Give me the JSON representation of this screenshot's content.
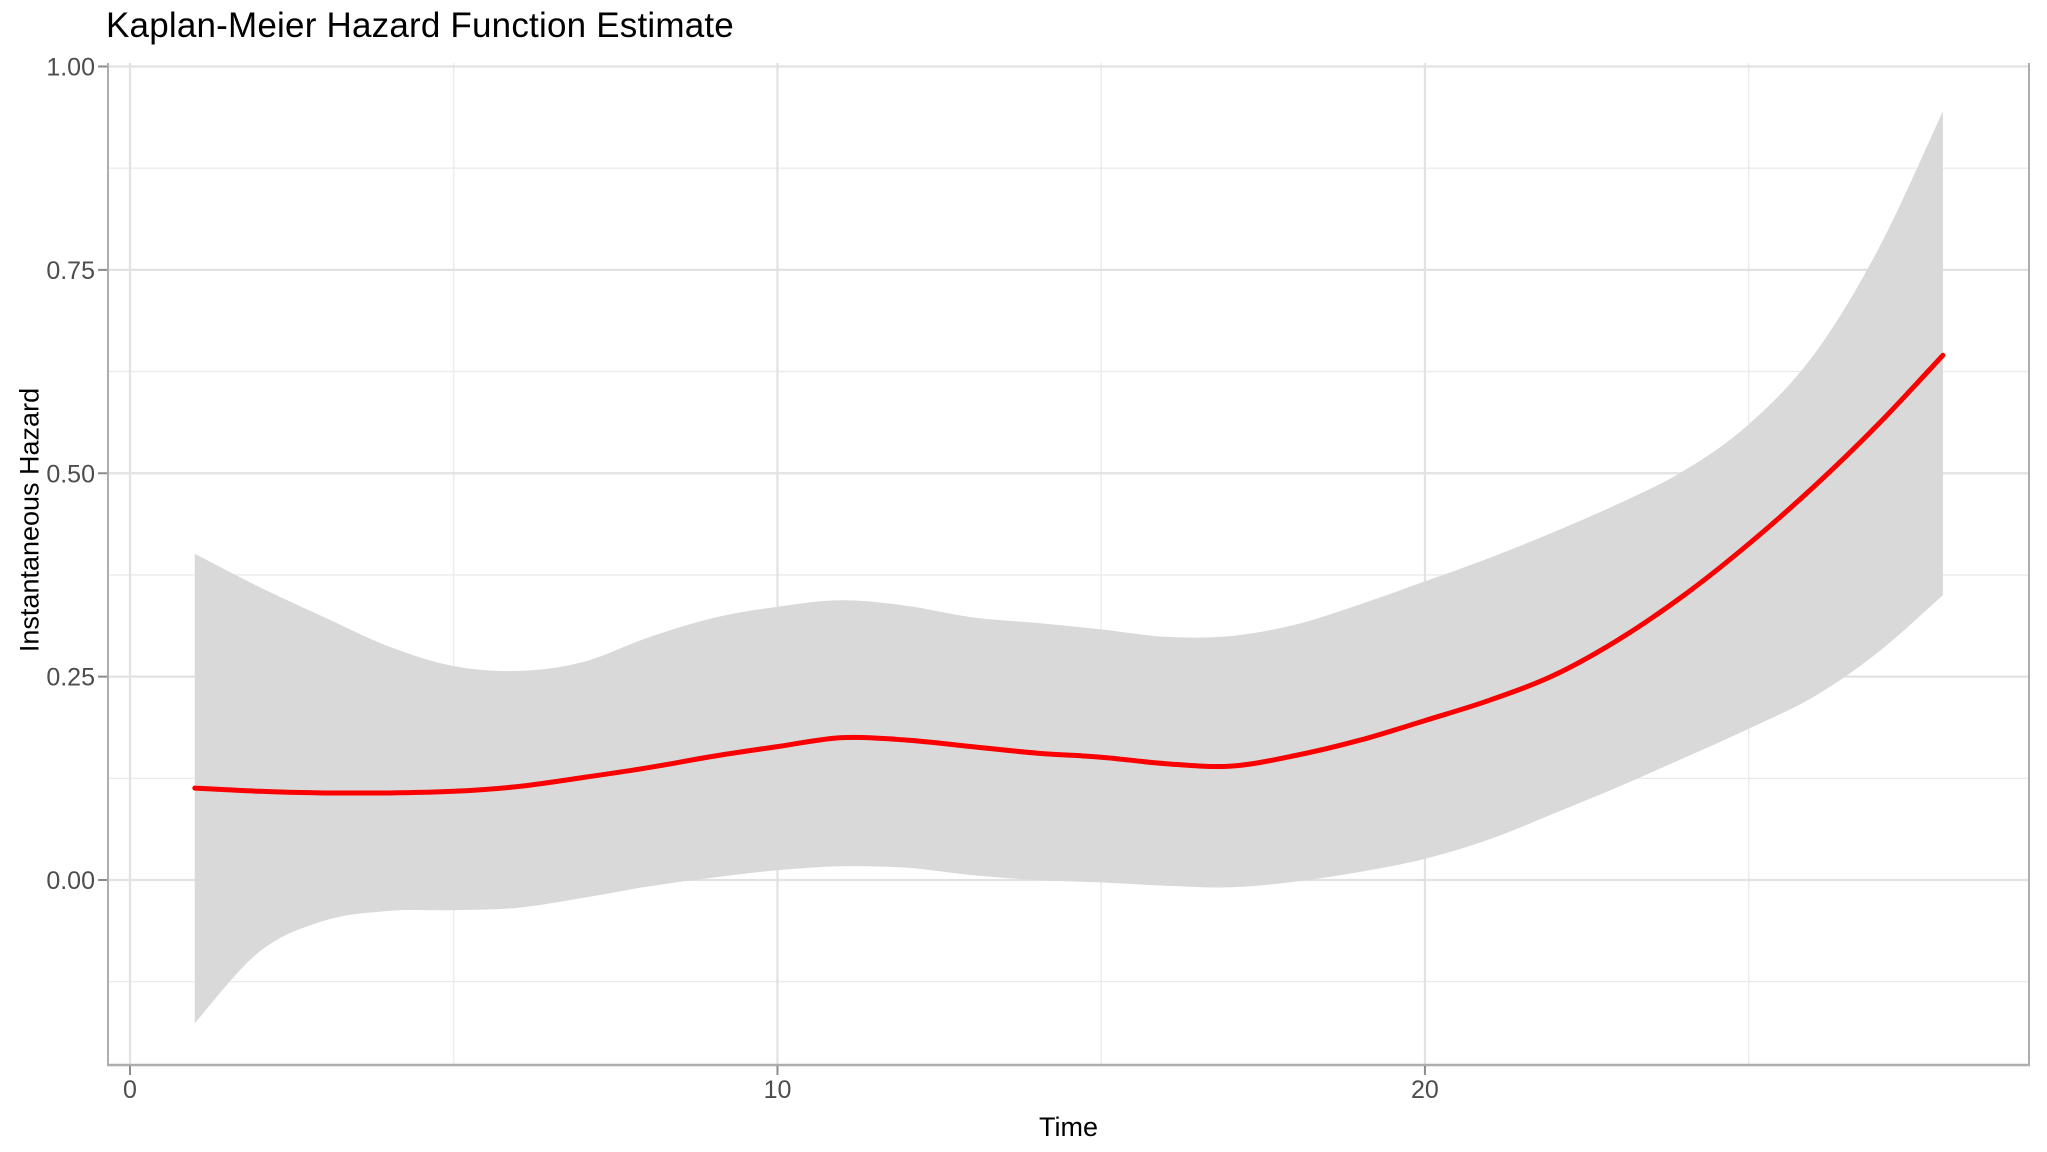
{
  "chart_data": {
    "type": "line",
    "title": "Kaplan-Meier Hazard Function Estimate",
    "xlabel": "Time",
    "ylabel": "Instantaneous Hazard",
    "legend": "none",
    "grid": true,
    "xlim": [
      -0.34,
      29.33
    ],
    "ylim": [
      -0.2274,
      1.0043
    ],
    "x_ticks": [
      0,
      10,
      20
    ],
    "x_tick_labels": [
      "0",
      "10",
      "20"
    ],
    "x_minor_gridlines": [
      5,
      15,
      25
    ],
    "y_ticks": [
      0,
      0.25,
      0.5,
      0.75,
      1.0
    ],
    "y_tick_labels": [
      "0.00",
      "0.25",
      "0.50",
      "0.75",
      "1.00"
    ],
    "y_minor_gridlines": [
      -0.125,
      0.125,
      0.375,
      0.625,
      0.875
    ],
    "x": [
      1,
      2,
      3,
      4,
      5,
      6,
      7,
      8,
      9,
      10,
      11,
      12,
      13,
      14,
      15,
      16,
      17,
      18,
      19,
      20,
      21,
      22,
      23,
      24,
      25,
      26,
      27,
      28
    ],
    "series": [
      {
        "name": "hazard-estimate",
        "values": [
          0.113,
          0.109,
          0.107,
          0.107,
          0.109,
          0.115,
          0.126,
          0.138,
          0.152,
          0.164,
          0.175,
          0.172,
          0.164,
          0.156,
          0.151,
          0.143,
          0.14,
          0.153,
          0.172,
          0.196,
          0.221,
          0.252,
          0.296,
          0.35,
          0.413,
          0.483,
          0.56,
          0.645
        ]
      }
    ],
    "confidence_band": {
      "name": "95%-confidence-band",
      "upper": [
        0.401,
        0.36,
        0.323,
        0.287,
        0.263,
        0.257,
        0.268,
        0.298,
        0.322,
        0.336,
        0.344,
        0.337,
        0.323,
        0.316,
        0.308,
        0.299,
        0.3,
        0.314,
        0.339,
        0.367,
        0.396,
        0.428,
        0.463,
        0.503,
        0.56,
        0.645,
        0.775,
        0.945
      ],
      "lower": [
        -0.176,
        -0.088,
        -0.05,
        -0.038,
        -0.037,
        -0.034,
        -0.022,
        -0.008,
        0.003,
        0.012,
        0.017,
        0.015,
        0.006,
        0.0,
        -0.003,
        -0.007,
        -0.009,
        -0.002,
        0.01,
        0.026,
        0.05,
        0.082,
        0.115,
        0.15,
        0.186,
        0.225,
        0.28,
        0.35
      ]
    },
    "colors": {
      "line": "#FA0000",
      "band_fill": "#D9D9D9",
      "grid_major": "#E2E2E2",
      "grid_minor": "#EBEBEB",
      "panel_border": "#ADADAD",
      "tick_mark": "#8C8C8C",
      "tick_label": "#4D4D4D",
      "title_text": "#000000",
      "background": "#FFFFFF"
    }
  }
}
